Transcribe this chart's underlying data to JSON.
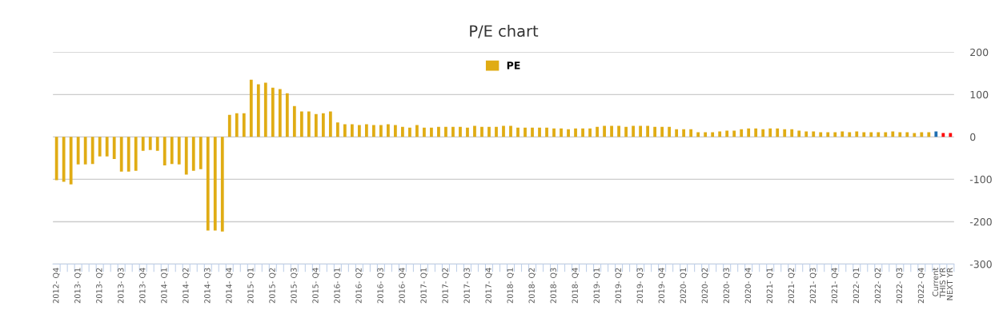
{
  "chart_data": {
    "type": "bar",
    "title": "P/E chart",
    "categories": [
      "2012- Q4",
      null,
      null,
      "2013- Q1",
      null,
      null,
      "2013- Q2",
      null,
      null,
      "2013- Q3",
      null,
      null,
      "2013- Q4",
      null,
      null,
      "2014- Q1",
      null,
      null,
      "2014- Q2",
      null,
      null,
      "2014- Q3",
      null,
      null,
      "2014- Q4",
      null,
      null,
      "2015- Q1",
      null,
      null,
      "2015- Q2",
      null,
      null,
      "2015- Q3",
      null,
      null,
      "2015- Q4",
      null,
      null,
      "2016- Q1",
      null,
      null,
      "2016- Q2",
      null,
      null,
      "2016- Q3",
      null,
      null,
      "2016- Q4",
      null,
      null,
      "2017- Q1",
      null,
      null,
      "2017- Q2",
      null,
      null,
      "2017- Q3",
      null,
      null,
      "2017- Q4",
      null,
      null,
      "2018- Q1",
      null,
      null,
      "2018- Q2",
      null,
      null,
      "2018- Q3",
      null,
      null,
      "2018- Q4",
      null,
      null,
      "2019- Q1",
      null,
      null,
      "2019- Q2",
      null,
      null,
      "2019- Q3",
      null,
      null,
      "2019- Q4",
      null,
      null,
      "2020- Q1",
      null,
      null,
      "2020- Q2",
      null,
      null,
      "2020- Q3",
      null,
      null,
      "2020- Q4",
      null,
      null,
      "2021- Q1",
      null,
      null,
      "2021- Q2",
      null,
      null,
      "2021- Q3",
      null,
      null,
      "2021- Q4",
      null,
      null,
      "2022- Q1",
      null,
      null,
      "2022- Q2",
      null,
      null,
      "2022- Q3",
      null,
      null,
      "2022- Q4",
      null,
      "Current",
      "THIS YR",
      "NEXT YR"
    ],
    "series": [
      {
        "name": "PE",
        "color": "#e0ac14",
        "colors": [
          "#e0ac14",
          "#e0ac14",
          "#e0ac14",
          "#e0ac14",
          "#e0ac14",
          "#e0ac14",
          "#e0ac14",
          "#e0ac14",
          "#e0ac14",
          "#e0ac14",
          "#e0ac14",
          "#e0ac14",
          "#e0ac14",
          "#e0ac14",
          "#e0ac14",
          "#e0ac14",
          "#e0ac14",
          "#e0ac14",
          "#e0ac14",
          "#e0ac14",
          "#e0ac14",
          "#e0ac14",
          "#e0ac14",
          "#e0ac14",
          "#e0ac14",
          "#e0ac14",
          "#e0ac14",
          "#e0ac14",
          "#e0ac14",
          "#e0ac14",
          "#e0ac14",
          "#e0ac14",
          "#e0ac14",
          "#e0ac14",
          "#e0ac14",
          "#e0ac14",
          "#e0ac14",
          "#e0ac14",
          "#e0ac14",
          "#e0ac14",
          "#e0ac14",
          "#e0ac14",
          "#e0ac14",
          "#e0ac14",
          "#e0ac14",
          "#e0ac14",
          "#e0ac14",
          "#e0ac14",
          "#e0ac14",
          "#e0ac14",
          "#e0ac14",
          "#e0ac14",
          "#e0ac14",
          "#e0ac14",
          "#e0ac14",
          "#e0ac14",
          "#e0ac14",
          "#e0ac14",
          "#e0ac14",
          "#e0ac14",
          "#e0ac14",
          "#e0ac14",
          "#e0ac14",
          "#e0ac14",
          "#e0ac14",
          "#e0ac14",
          "#e0ac14",
          "#e0ac14",
          "#e0ac14",
          "#e0ac14",
          "#e0ac14",
          "#e0ac14",
          "#e0ac14",
          "#e0ac14",
          "#e0ac14",
          "#e0ac14",
          "#e0ac14",
          "#e0ac14",
          "#e0ac14",
          "#e0ac14",
          "#e0ac14",
          "#e0ac14",
          "#e0ac14",
          "#e0ac14",
          "#e0ac14",
          "#e0ac14",
          "#e0ac14",
          "#e0ac14",
          "#e0ac14",
          "#e0ac14",
          "#e0ac14",
          "#e0ac14",
          "#e0ac14",
          "#e0ac14",
          "#e0ac14",
          "#e0ac14",
          "#e0ac14",
          "#e0ac14",
          "#e0ac14",
          "#e0ac14",
          "#e0ac14",
          "#e0ac14",
          "#e0ac14",
          "#e0ac14",
          "#e0ac14",
          "#e0ac14",
          "#e0ac14",
          "#e0ac14",
          "#e0ac14",
          "#e0ac14",
          "#e0ac14",
          "#e0ac14",
          "#e0ac14",
          "#e0ac14",
          "#e0ac14",
          "#e0ac14",
          "#e0ac14",
          "#e0ac14",
          "#e0ac14",
          "#e0ac14",
          "#e0ac14",
          "#e0ac14",
          "#1f6fb2",
          "#ff0000",
          "#ff0000"
        ],
        "values": [
          -102,
          -106,
          -112,
          -65,
          -65,
          -64,
          -46,
          -46,
          -52,
          -82,
          -82,
          -80,
          -33,
          -31,
          -33,
          -67,
          -64,
          -65,
          -89,
          -80,
          -76,
          -221,
          -221,
          -223,
          52,
          56,
          56,
          135,
          124,
          128,
          116,
          113,
          103,
          73,
          60,
          60,
          54,
          56,
          60,
          34,
          30,
          30,
          28,
          30,
          28,
          28,
          30,
          28,
          24,
          22,
          28,
          22,
          22,
          24,
          24,
          24,
          24,
          22,
          26,
          24,
          24,
          24,
          26,
          26,
          22,
          22,
          22,
          22,
          22,
          20,
          20,
          18,
          20,
          20,
          20,
          24,
          26,
          26,
          26,
          24,
          26,
          26,
          26,
          24,
          24,
          24,
          18,
          18,
          18,
          11,
          11,
          11,
          13,
          15,
          15,
          18,
          20,
          20,
          18,
          20,
          20,
          18,
          18,
          15,
          13,
          13,
          11,
          11,
          11,
          13,
          11,
          13,
          11,
          11,
          11,
          11,
          13,
          11,
          11,
          9,
          11,
          11,
          13,
          9,
          9
        ]
      }
    ],
    "ylim": [
      -300,
      200
    ],
    "yticks": [
      -300,
      -200,
      -100,
      0,
      100,
      200
    ],
    "grid": "y",
    "legend": "top"
  }
}
